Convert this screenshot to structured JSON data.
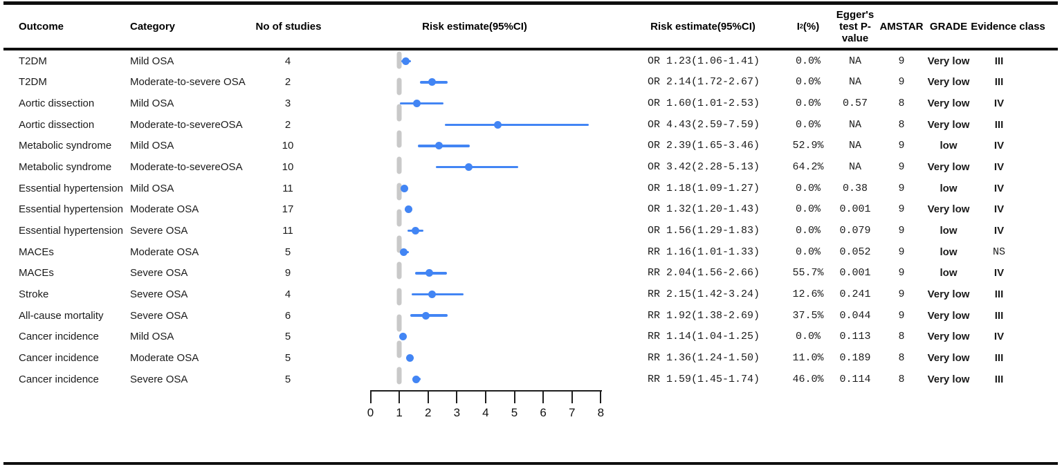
{
  "headers": {
    "outcome": "Outcome",
    "category": "Category",
    "n_studies": "No of studies",
    "risk_plot": "Risk estimate(95%CI)",
    "risk_text": "Risk estimate(95%CI)",
    "i2_base": "I",
    "i2_sup": "2",
    "i2_unit": "(%)",
    "egger_lines": [
      "Egger's",
      "test P-",
      "value"
    ],
    "amstar": "AMSTAR",
    "grade": "GRADE",
    "evidence": "Evidence class"
  },
  "rows": [
    {
      "outcome": "T2DM",
      "category": "Mild OSA",
      "n": "4",
      "risk": "OR 1.23(1.06-1.41)",
      "i2": "0.0%",
      "egger": "NA",
      "amstar": "9",
      "grade": "Very low",
      "evidence": "III"
    },
    {
      "outcome": "T2DM",
      "category": "Moderate-to-severe OSA",
      "n": "2",
      "risk": "OR 2.14(1.72-2.67)",
      "i2": "0.0%",
      "egger": "NA",
      "amstar": "9",
      "grade": "Very low",
      "evidence": "III"
    },
    {
      "outcome": "Aortic dissection",
      "category": "Mild OSA",
      "n": "3",
      "risk": "OR 1.60(1.01-2.53)",
      "i2": "0.0%",
      "egger": "0.57",
      "amstar": "8",
      "grade": "Very low",
      "evidence": "IV"
    },
    {
      "outcome": "Aortic dissection",
      "category": "Moderate-to-severeOSA",
      "n": "2",
      "risk": "OR 4.43(2.59-7.59)",
      "i2": "0.0%",
      "egger": "NA",
      "amstar": "8",
      "grade": "Very low",
      "evidence": "III"
    },
    {
      "outcome": "Metabolic syndrome",
      "category": "Mild OSA",
      "n": "10",
      "risk": "OR 2.39(1.65-3.46)",
      "i2": "52.9%",
      "egger": "NA",
      "amstar": "9",
      "grade": "low",
      "evidence": "IV"
    },
    {
      "outcome": "Metabolic syndrome",
      "category": "Moderate-to-severeOSA",
      "n": "10",
      "risk": "OR 3.42(2.28-5.13)",
      "i2": "64.2%",
      "egger": "NA",
      "amstar": "9",
      "grade": "Very low",
      "evidence": "IV"
    },
    {
      "outcome": "Essential hypertension",
      "category": "Mild OSA",
      "n": "11",
      "risk": "OR 1.18(1.09-1.27)",
      "i2": "0.0%",
      "egger": "0.38",
      "amstar": "9",
      "grade": "low",
      "evidence": "IV"
    },
    {
      "outcome": "Essential hypertension",
      "category": "Moderate OSA",
      "n": "17",
      "risk": "OR 1.32(1.20-1.43)",
      "i2": "0.0%",
      "egger": "0.001",
      "amstar": "9",
      "grade": "Very low",
      "evidence": "IV"
    },
    {
      "outcome": "Essential hypertension",
      "category": "Severe OSA",
      "n": "11",
      "risk": "OR 1.56(1.29-1.83)",
      "i2": "0.0%",
      "egger": "0.079",
      "amstar": "9",
      "grade": "low",
      "evidence": "IV"
    },
    {
      "outcome": "MACEs",
      "category": "Moderate OSA",
      "n": "5",
      "risk": "RR 1.16(1.01-1.33)",
      "i2": "0.0%",
      "egger": "0.052",
      "amstar": "9",
      "grade": "low",
      "evidence": "NS"
    },
    {
      "outcome": "MACEs",
      "category": "Severe OSA",
      "n": "9",
      "risk": "RR 2.04(1.56-2.66)",
      "i2": "55.7%",
      "egger": "0.001",
      "amstar": "9",
      "grade": "low",
      "evidence": "IV"
    },
    {
      "outcome": "Stroke",
      "category": "Severe OSA",
      "n": "4",
      "risk": "RR 2.15(1.42-3.24)",
      "i2": "12.6%",
      "egger": "0.241",
      "amstar": "9",
      "grade": "Very low",
      "evidence": "III"
    },
    {
      "outcome": "All-cause mortality",
      "category": "Severe OSA",
      "n": "6",
      "risk": "RR 1.92(1.38-2.69)",
      "i2": "37.5%",
      "egger": "0.044",
      "amstar": "9",
      "grade": "Very low",
      "evidence": "III"
    },
    {
      "outcome": "Cancer incidence",
      "category": "Mild OSA",
      "n": "5",
      "risk": "RR 1.14(1.04-1.25)",
      "i2": "0.0%",
      "egger": "0.113",
      "amstar": "8",
      "grade": "Very low",
      "evidence": "IV"
    },
    {
      "outcome": "Cancer incidence",
      "category": "Moderate OSA",
      "n": "5",
      "risk": "RR 1.36(1.24-1.50)",
      "i2": "11.0%",
      "egger": "0.189",
      "amstar": "8",
      "grade": "Very low",
      "evidence": "III"
    },
    {
      "outcome": "Cancer incidence",
      "category": "Severe OSA",
      "n": "5",
      "risk": "RR 1.59(1.45-1.74)",
      "i2": "46.0%",
      "egger": "0.114",
      "amstar": "8",
      "grade": "Very low",
      "evidence": "III"
    }
  ],
  "chart_data": {
    "type": "scatter",
    "subtype": "forest-plot",
    "title": "",
    "xlabel": "",
    "ylabel": "",
    "x_axis": {
      "min": 0,
      "max": 8,
      "ticks": [
        "0",
        "1",
        "2",
        "3",
        "4",
        "5",
        "6",
        "7",
        "8"
      ]
    },
    "reference_line_x": 1,
    "points": [
      {
        "label": "T2DM Mild OSA",
        "est": 1.23,
        "lo": 1.06,
        "hi": 1.41
      },
      {
        "label": "T2DM Moderate-to-severe OSA",
        "est": 2.14,
        "lo": 1.72,
        "hi": 2.67
      },
      {
        "label": "Aortic dissection Mild OSA",
        "est": 1.6,
        "lo": 1.01,
        "hi": 2.53
      },
      {
        "label": "Aortic dissection Moderate-to-severeOSA",
        "est": 4.43,
        "lo": 2.59,
        "hi": 7.59
      },
      {
        "label": "Metabolic syndrome Mild OSA",
        "est": 2.39,
        "lo": 1.65,
        "hi": 3.46
      },
      {
        "label": "Metabolic syndrome Moderate-to-severeOSA",
        "est": 3.42,
        "lo": 2.28,
        "hi": 5.13
      },
      {
        "label": "Essential hypertension Mild OSA",
        "est": 1.18,
        "lo": 1.09,
        "hi": 1.27
      },
      {
        "label": "Essential hypertension Moderate OSA",
        "est": 1.32,
        "lo": 1.2,
        "hi": 1.43
      },
      {
        "label": "Essential hypertension Severe OSA",
        "est": 1.56,
        "lo": 1.29,
        "hi": 1.83
      },
      {
        "label": "MACEs Moderate OSA",
        "est": 1.16,
        "lo": 1.01,
        "hi": 1.33
      },
      {
        "label": "MACEs Severe OSA",
        "est": 2.04,
        "lo": 1.56,
        "hi": 2.66
      },
      {
        "label": "Stroke Severe OSA",
        "est": 2.15,
        "lo": 1.42,
        "hi": 3.24
      },
      {
        "label": "All-cause mortality Severe OSA",
        "est": 1.92,
        "lo": 1.38,
        "hi": 2.69
      },
      {
        "label": "Cancer incidence Mild OSA",
        "est": 1.14,
        "lo": 1.04,
        "hi": 1.25
      },
      {
        "label": "Cancer incidence Moderate OSA",
        "est": 1.36,
        "lo": 1.24,
        "hi": 1.5
      },
      {
        "label": "Cancer incidence Severe OSA",
        "est": 1.59,
        "lo": 1.45,
        "hi": 1.74
      }
    ]
  },
  "colors": {
    "marker_blue": "#4285f4",
    "reference_gray": "#c9c9c9",
    "rule_black": "#0f0f0f"
  }
}
